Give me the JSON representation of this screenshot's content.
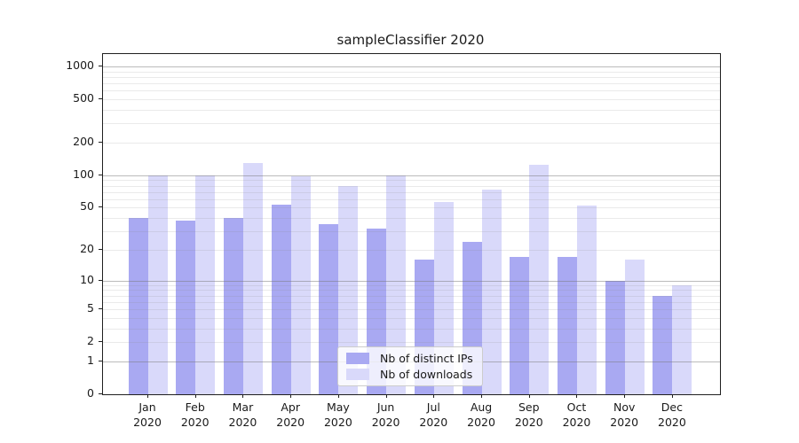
{
  "chart_data": {
    "type": "bar",
    "title": "sampleClassifier 2020",
    "months": [
      "Jan",
      "Feb",
      "Mar",
      "Apr",
      "May",
      "Jun",
      "Jul",
      "Aug",
      "Sep",
      "Oct",
      "Nov",
      "Dec"
    ],
    "year": "2020",
    "categories": [
      "Jan 2020",
      "Feb 2020",
      "Mar 2020",
      "Apr 2020",
      "May 2020",
      "Jun 2020",
      "Jul 2020",
      "Aug 2020",
      "Sep 2020",
      "Oct 2020",
      "Nov 2020",
      "Dec 2020"
    ],
    "series": [
      {
        "name": "Nb of distinct IPs",
        "color": "#a9a9f2",
        "values": [
          40,
          38,
          40,
          53,
          35,
          32,
          16,
          24,
          17,
          17,
          10,
          7
        ]
      },
      {
        "name": "Nb of downloads",
        "color": "#d9d9fa",
        "values": [
          100,
          100,
          130,
          97,
          80,
          100,
          57,
          74,
          125,
          52,
          16,
          9
        ]
      }
    ],
    "xlabel": "",
    "ylabel": "",
    "yscale": "symlog: position proportional to log10(value+1)",
    "yticks": [
      0,
      1,
      2,
      5,
      10,
      20,
      50,
      100,
      200,
      500,
      1000
    ],
    "major_gridlines": [
      1,
      10,
      100,
      1000
    ],
    "ylim": [
      0,
      1350
    ],
    "grid": true,
    "legend_position": "lower center"
  },
  "colors": {
    "bar_distinct_ips": "#a9a9f2",
    "bar_downloads": "#d9d9fa",
    "axis": "#1f1f1f",
    "text": "#1a1a1a",
    "major_grid": "rgba(120,120,120,0.50)",
    "minor_grid": "rgba(140,140,140,0.18)",
    "legend_border": "#cccccc",
    "legend_bg": "rgba(255,255,255,0.8)"
  }
}
